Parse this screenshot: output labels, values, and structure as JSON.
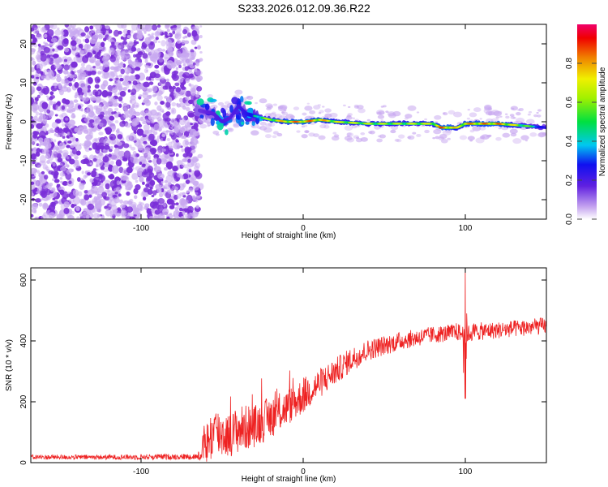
{
  "title": "S233.2026.012.09.36.R22",
  "colors": {
    "snr_line": "#ee2222",
    "noise": "#7b2fd8",
    "noise_light": "#c8a8f0"
  },
  "chart_data": [
    {
      "type": "heatmap",
      "name": "spectrogram",
      "xlabel": "Height of straight line (km)",
      "ylabel": "Frequency (Hz)",
      "xlim": [
        -168,
        150
      ],
      "ylim": [
        -25,
        25
      ],
      "xticks": [
        -100,
        0,
        100
      ],
      "xtick_labels": [
        "-100",
        "0",
        "100"
      ],
      "yticks": [
        -20,
        -10,
        0,
        10,
        20
      ],
      "ytick_labels": [
        "-20",
        "-10",
        "0",
        "10",
        "20"
      ],
      "colorbar": {
        "label": "Normalized spectral amplitude",
        "range": [
          0,
          1
        ],
        "ticks": [
          0.0,
          0.2,
          0.4,
          0.6,
          0.8
        ],
        "tick_labels": [
          "0.0",
          "0.2",
          "0.4",
          "0.6",
          "0.8"
        ]
      },
      "noise_region_x": [
        -168,
        -65
      ],
      "signal_ridge": {
        "x": [
          -65,
          -55,
          -50,
          -45,
          -40,
          -35,
          -30,
          -20,
          -10,
          0,
          10,
          20,
          40,
          60,
          80,
          85,
          90,
          95,
          100,
          120,
          150
        ],
        "freq": [
          3,
          2,
          0,
          1,
          4,
          2,
          1.5,
          0.5,
          0,
          0,
          0.5,
          0,
          -0.5,
          -0.5,
          -0.5,
          -1.5,
          -1.5,
          -1.5,
          -0.5,
          -0.5,
          -1.5
        ],
        "amplitude": [
          0.25,
          0.3,
          0.35,
          0.3,
          0.35,
          0.4,
          0.5,
          0.7,
          0.85,
          0.9,
          0.85,
          0.75,
          0.7,
          0.7,
          0.75,
          0.9,
          0.9,
          0.75,
          0.85,
          0.9,
          0.4
        ]
      }
    },
    {
      "type": "line",
      "name": "snr",
      "xlabel": "Height of straight line (km)",
      "ylabel": "SNR (10 * v/v)",
      "xlim": [
        -168,
        150
      ],
      "ylim": [
        0,
        640
      ],
      "xticks": [
        -100,
        0,
        100
      ],
      "xtick_labels": [
        "-100",
        "0",
        "100"
      ],
      "yticks": [
        0,
        200,
        400,
        600
      ],
      "ytick_labels": [
        "0",
        "200",
        "400",
        "600"
      ],
      "envelope": {
        "x": [
          -168,
          -120,
          -65,
          -60,
          -55,
          -45,
          -40,
          -30,
          -20,
          -10,
          0,
          10,
          20,
          30,
          40,
          60,
          80,
          90,
          95,
          99,
          100,
          101,
          105,
          120,
          150
        ],
        "mean": [
          18,
          18,
          20,
          60,
          100,
          90,
          110,
          120,
          150,
          180,
          220,
          260,
          300,
          340,
          370,
          400,
          420,
          425,
          430,
          420,
          440,
          420,
          430,
          435,
          450
        ],
        "spread": [
          8,
          8,
          10,
          70,
          90,
          70,
          80,
          70,
          70,
          60,
          60,
          50,
          45,
          40,
          35,
          30,
          28,
          28,
          30,
          30,
          30,
          30,
          30,
          28,
          28
        ]
      },
      "spike": {
        "x": 100,
        "high": 640,
        "low": 210
      }
    }
  ]
}
